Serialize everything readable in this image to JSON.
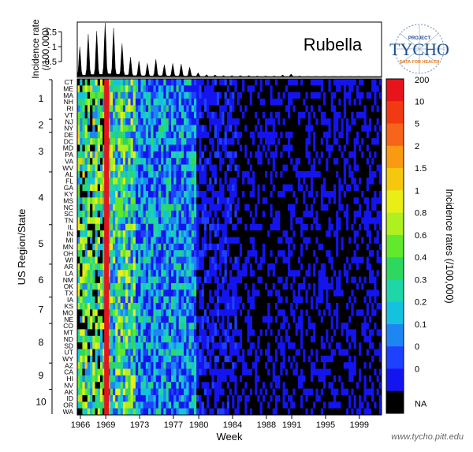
{
  "chart_data": [
    {
      "type": "area",
      "panel": "top-incidence",
      "title": "Rubella",
      "ylabel_lines": [
        "Incidence rate",
        "(/100,000)"
      ],
      "yticks": [
        "0.5",
        "1",
        "1.5"
      ],
      "ylim": [
        0,
        1.8
      ],
      "x_start_year": 1966,
      "x_end_year": 2002,
      "annual_peaks": [
        {
          "year": 1966,
          "peak": 0.95
        },
        {
          "year": 1967,
          "peak": 1.35
        },
        {
          "year": 1968,
          "peak": 1.45
        },
        {
          "year": 1969,
          "peak": 1.8
        },
        {
          "year": 1970,
          "peak": 1.55
        },
        {
          "year": 1971,
          "peak": 1.05
        },
        {
          "year": 1972,
          "peak": 0.62
        },
        {
          "year": 1973,
          "peak": 0.5
        },
        {
          "year": 1974,
          "peak": 0.42
        },
        {
          "year": 1975,
          "peak": 0.55
        },
        {
          "year": 1976,
          "peak": 0.38
        },
        {
          "year": 1977,
          "peak": 0.42
        },
        {
          "year": 1978,
          "peak": 0.4
        },
        {
          "year": 1979,
          "peak": 0.3
        },
        {
          "year": 1980,
          "peak": 0.12
        },
        {
          "year": 1981,
          "peak": 0.06
        },
        {
          "year": 1982,
          "peak": 0.05
        },
        {
          "year": 1983,
          "peak": 0.03
        },
        {
          "year": 1984,
          "peak": 0.03
        },
        {
          "year": 1985,
          "peak": 0.03
        },
        {
          "year": 1986,
          "peak": 0.03
        },
        {
          "year": 1987,
          "peak": 0.02
        },
        {
          "year": 1988,
          "peak": 0.02
        },
        {
          "year": 1989,
          "peak": 0.02
        },
        {
          "year": 1990,
          "peak": 0.05
        },
        {
          "year": 1991,
          "peak": 0.08
        },
        {
          "year": 1992,
          "peak": 0.02
        },
        {
          "year": 1993,
          "peak": 0.01
        },
        {
          "year": 1994,
          "peak": 0.01
        },
        {
          "year": 1995,
          "peak": 0.01
        },
        {
          "year": 1996,
          "peak": 0.01
        },
        {
          "year": 1997,
          "peak": 0.01
        },
        {
          "year": 1998,
          "peak": 0.01
        },
        {
          "year": 1999,
          "peak": 0.01
        },
        {
          "year": 2000,
          "peak": 0.005
        },
        {
          "year": 2001,
          "peak": 0.005
        }
      ]
    },
    {
      "type": "heatmap",
      "panel": "state-heatmap",
      "xlabel": "Week",
      "ylabel": "US Region/State",
      "xticks": [
        "1966",
        "1969",
        "1973",
        "1977",
        "1980",
        "1984",
        "1988",
        "1991",
        "1995",
        "1999"
      ],
      "x_start_year": 1966,
      "x_end_year": 2002,
      "states": [
        "CT",
        "ME",
        "MA",
        "NH",
        "RI",
        "VT",
        "NJ",
        "NY",
        "DE",
        "DC",
        "MD",
        "PA",
        "VA",
        "WV",
        "AL",
        "FL",
        "GA",
        "KY",
        "MS",
        "NC",
        "SC",
        "TN",
        "IL",
        "IN",
        "MI",
        "MN",
        "OH",
        "WI",
        "AR",
        "LA",
        "NM",
        "OK",
        "TX",
        "IA",
        "KS",
        "MO",
        "NE",
        "CO",
        "MT",
        "ND",
        "SD",
        "UT",
        "WY",
        "AZ",
        "CA",
        "HI",
        "NV",
        "AK",
        "ID",
        "OR",
        "WA"
      ],
      "regions": [
        {
          "label": "1",
          "first": 0,
          "last": 5
        },
        {
          "label": "2",
          "first": 6,
          "last": 7
        },
        {
          "label": "3",
          "first": 8,
          "last": 13
        },
        {
          "label": "4",
          "first": 14,
          "last": 21
        },
        {
          "label": "5",
          "first": 22,
          "last": 27
        },
        {
          "label": "6",
          "first": 28,
          "last": 32
        },
        {
          "label": "7",
          "first": 33,
          "last": 36
        },
        {
          "label": "8",
          "first": 37,
          "last": 42
        },
        {
          "label": "9",
          "first": 43,
          "last": 46
        },
        {
          "label": "10",
          "first": 47,
          "last": 50
        }
      ],
      "highlight_column_year": 1969,
      "highlight_column_color": "#e8141c",
      "color_scale": {
        "title": "Incidence rates (/100,000)",
        "labels": [
          "200",
          "10",
          "5",
          "2",
          "1.5",
          "1",
          "0.8",
          "0.6",
          "0.4",
          "0.3",
          "0.2",
          "0.1",
          "0",
          "0",
          "NA"
        ],
        "colors": [
          "#e8141c",
          "#f23a12",
          "#f7641a",
          "#fa9a12",
          "#f5c80f",
          "#e9ee16",
          "#aef020",
          "#62e82c",
          "#2ed85e",
          "#1ed6a6",
          "#14c2e0",
          "#1e86f2",
          "#1e40ff",
          "#1414f0",
          "#000000"
        ]
      }
    }
  ],
  "logo": {
    "top_text": "PROJECT",
    "word": "TYCHO",
    "subtitle": "DATA FOR HEALTH"
  },
  "source_url": "www.tycho.pitt.edu",
  "colors": {
    "highlight_red": "#e8141c",
    "logo_blue": "#1f4f8f",
    "logo_orange": "#e07a26"
  }
}
